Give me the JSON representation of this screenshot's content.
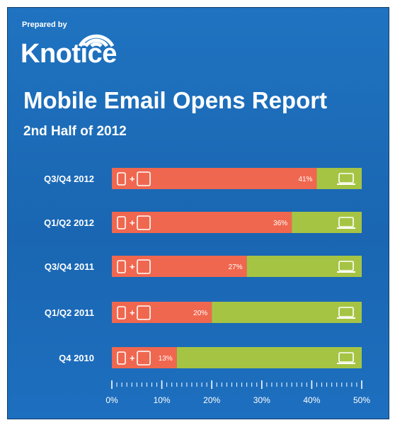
{
  "header": {
    "prepared_by": "Prepared by",
    "brand": "Knotice",
    "title": "Mobile Email Opens Report",
    "subtitle": "2nd Half of 2012"
  },
  "icons": {
    "mobile": "phone-tablet-icon",
    "desktop": "laptop-icon",
    "plus": "+"
  },
  "colors": {
    "background": "#1a66b2",
    "mobile_bar": "#f0674f",
    "desktop_bar": "#a6c443",
    "text": "#ffffff"
  },
  "chart_data": {
    "type": "bar",
    "orientation": "horizontal",
    "stacked": true,
    "title": "Mobile Email Opens Report",
    "subtitle": "2nd Half of 2012",
    "categories": [
      "Q3/Q4 2012",
      "Q1/Q2 2012",
      "Q3/Q4 2011",
      "Q1/Q2 2011",
      "Q4 2010"
    ],
    "series": [
      {
        "values": [
          41,
          36,
          27,
          20,
          13
        ],
        "color": "#f0674f",
        "data_labels": [
          "41%",
          "36%",
          "27%",
          "20%",
          "13%"
        ]
      },
      {
        "values": [
          9,
          14,
          23,
          30,
          37
        ],
        "color": "#a6c443"
      }
    ],
    "xlim": [
      0,
      50
    ],
    "x_ticks": [
      "0%",
      "10%",
      "20%",
      "30%",
      "40%",
      "50%"
    ],
    "grid": false
  }
}
